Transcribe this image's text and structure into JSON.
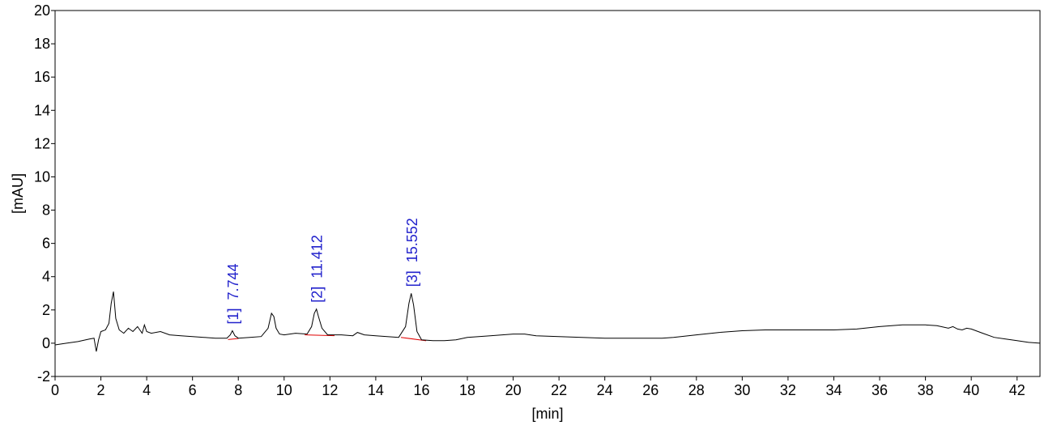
{
  "chart_data": {
    "type": "line",
    "xlabel": "[min]",
    "ylabel": "[mAU]",
    "xlim": [
      0,
      43
    ],
    "ylim": [
      -2,
      20
    ],
    "x_ticks": [
      0,
      2,
      4,
      6,
      8,
      10,
      12,
      14,
      16,
      18,
      20,
      22,
      24,
      26,
      28,
      30,
      32,
      34,
      36,
      38,
      40,
      42
    ],
    "y_ticks": [
      -2,
      0,
      2,
      4,
      6,
      8,
      10,
      12,
      14,
      16,
      18,
      20
    ],
    "grid": false,
    "colors": {
      "trace": "#000000",
      "baseline": "#e00000",
      "peak_label": "#2222cc"
    },
    "series": [
      {
        "x": [
          0.0,
          0.5,
          1.0,
          1.5,
          1.7,
          1.8,
          1.9,
          2.0,
          2.2,
          2.35,
          2.45,
          2.55,
          2.65,
          2.8,
          3.0,
          3.2,
          3.4,
          3.6,
          3.8,
          3.9,
          4.0,
          4.2,
          4.6,
          5.0,
          5.5,
          6.0,
          6.5,
          7.0,
          7.5,
          7.65,
          7.74,
          7.85,
          8.0,
          8.5,
          9.0,
          9.3,
          9.45,
          9.55,
          9.65,
          9.8,
          10.0,
          10.5,
          11.0,
          11.2,
          11.32,
          11.41,
          11.5,
          11.65,
          11.9,
          12.5,
          13.0,
          13.2,
          13.5,
          14.0,
          14.5,
          15.0,
          15.3,
          15.45,
          15.55,
          15.65,
          15.8,
          16.0,
          16.5,
          17.0,
          17.5,
          18.0,
          19.0,
          20.0,
          20.5,
          21.0,
          22.0,
          23.0,
          24.0,
          25.0,
          26.0,
          26.5,
          27.0,
          28.0,
          29.0,
          30.0,
          31.0,
          32.0,
          33.0,
          34.0,
          35.0,
          36.0,
          37.0,
          38.0,
          38.5,
          39.0,
          39.2,
          39.4,
          39.6,
          39.8,
          40.0,
          40.5,
          41.0,
          41.5,
          42.0,
          42.5,
          43.0
        ],
        "y": [
          -0.1,
          0.0,
          0.1,
          0.25,
          0.3,
          -0.5,
          0.2,
          0.7,
          0.8,
          1.2,
          2.4,
          3.1,
          1.5,
          0.8,
          0.6,
          0.9,
          0.7,
          1.0,
          0.6,
          1.1,
          0.7,
          0.6,
          0.7,
          0.5,
          0.45,
          0.4,
          0.35,
          0.3,
          0.3,
          0.5,
          0.75,
          0.45,
          0.3,
          0.35,
          0.4,
          0.9,
          1.8,
          1.6,
          0.9,
          0.55,
          0.5,
          0.6,
          0.55,
          1.0,
          1.8,
          2.05,
          1.6,
          0.9,
          0.5,
          0.5,
          0.45,
          0.65,
          0.5,
          0.45,
          0.4,
          0.35,
          1.0,
          2.4,
          3.0,
          2.3,
          0.7,
          0.2,
          0.15,
          0.15,
          0.2,
          0.35,
          0.45,
          0.55,
          0.55,
          0.45,
          0.4,
          0.35,
          0.3,
          0.3,
          0.3,
          0.3,
          0.35,
          0.5,
          0.65,
          0.75,
          0.8,
          0.8,
          0.8,
          0.8,
          0.85,
          1.0,
          1.1,
          1.1,
          1.05,
          0.9,
          1.0,
          0.85,
          0.8,
          0.9,
          0.85,
          0.6,
          0.35,
          0.25,
          0.15,
          0.05,
          0.0
        ]
      }
    ],
    "peaks": [
      {
        "id": "1",
        "label": "[1]  7.744",
        "x": 7.744,
        "y": 0.75,
        "baseline": [
          [
            7.55,
            0.22
          ],
          [
            8.0,
            0.28
          ]
        ]
      },
      {
        "id": "2",
        "label": "[2]  11.412",
        "x": 11.412,
        "y": 2.05,
        "baseline": [
          [
            10.9,
            0.5
          ],
          [
            12.2,
            0.45
          ]
        ]
      },
      {
        "id": "3",
        "label": "[3]  15.552",
        "x": 15.552,
        "y": 3.0,
        "baseline": [
          [
            15.1,
            0.35
          ],
          [
            16.2,
            0.15
          ]
        ]
      }
    ]
  }
}
